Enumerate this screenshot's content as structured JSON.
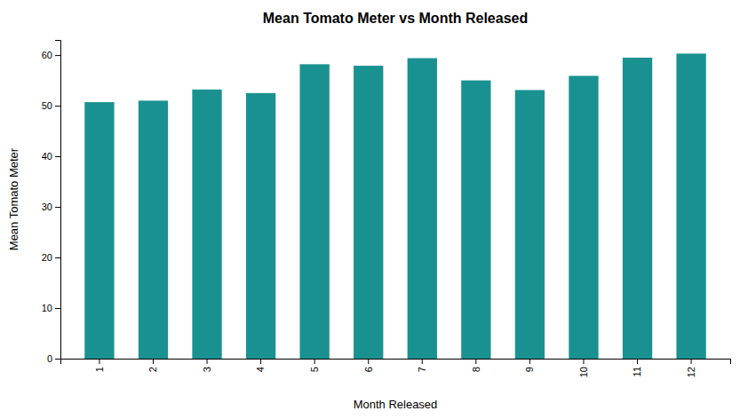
{
  "chart_data": {
    "type": "bar",
    "title": "Mean Tomato Meter vs Month Released",
    "xlabel": "Month Released",
    "ylabel": "Mean Tomato Meter",
    "categories": [
      1,
      2,
      3,
      4,
      5,
      6,
      7,
      8,
      9,
      10,
      11,
      12
    ],
    "values": [
      50.7,
      51.0,
      53.2,
      52.5,
      58.2,
      57.9,
      59.4,
      55.0,
      53.1,
      55.9,
      59.5,
      60.3
    ],
    "color": "#1a9191",
    "ylim": [
      0,
      63
    ],
    "yticks": [
      0,
      10,
      20,
      30,
      40,
      50,
      60
    ],
    "grid": false
  }
}
